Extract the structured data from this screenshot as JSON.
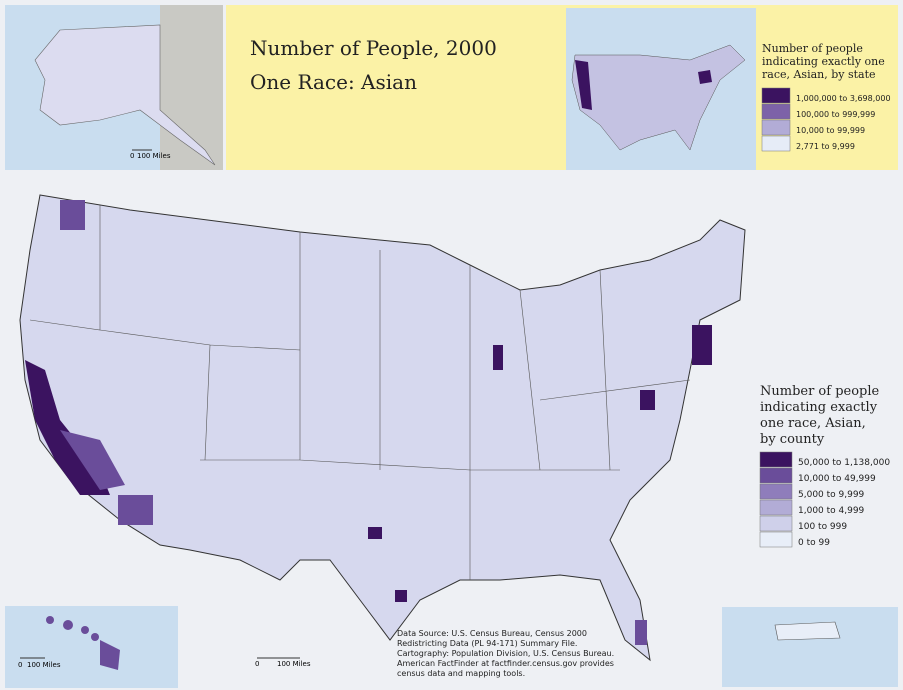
{
  "header": {
    "title": "Number of People, 2000",
    "subtitle": "One Race: Asian"
  },
  "state_legend": {
    "title": [
      "Number of people",
      "indicating exactly one",
      "race, Asian, by state"
    ],
    "items": [
      {
        "label": "1,000,000 to 3,698,000",
        "color": "#3b1360"
      },
      {
        "label": "100,000 to 999,999",
        "color": "#7d62a8"
      },
      {
        "label": "10,000 to 99,999",
        "color": "#b2acd6"
      },
      {
        "label": "2,771 to 9,999",
        "color": "#e6ecf7"
      }
    ]
  },
  "county_legend": {
    "title": [
      "Number of people",
      "indicating exactly",
      "one race, Asian,",
      "by county"
    ],
    "items": [
      {
        "label": "50,000 to 1,138,000",
        "color": "#3b1360"
      },
      {
        "label": "10,000 to 49,999",
        "color": "#6a4d9a"
      },
      {
        "label": "5,000 to 9,999",
        "color": "#8f7dbb"
      },
      {
        "label": "1,000 to 4,999",
        "color": "#b2acd6"
      },
      {
        "label": "100 to 999",
        "color": "#cfd0ea"
      },
      {
        "label": "0 to 99",
        "color": "#e8eef8"
      }
    ]
  },
  "scale_bars": {
    "alaska": [
      "0",
      "100 Miles"
    ],
    "hawaii": [
      "0",
      "100 Miles"
    ],
    "mainland": [
      "0",
      "100 Miles"
    ]
  },
  "source": [
    "Data Source: U.S. Census Bureau, Census 2000",
    "Redistricting Data (PL 94-171) Summary File.",
    "Cartography: Population Division, U.S. Census Bureau.",
    "American FactFinder at factfinder.census.gov provides",
    "census data and mapping tools."
  ]
}
